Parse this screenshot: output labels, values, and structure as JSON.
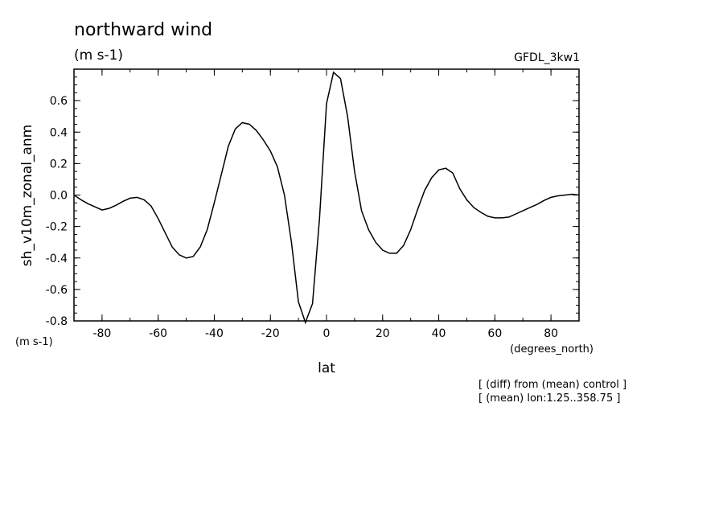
{
  "chart_data": {
    "type": "line",
    "title": "northward wind",
    "subtitle": "(m s-1)",
    "model_label": "GFDL_3kw1",
    "ylabel": "sh_v10m_zonal_anm",
    "yunits": "(m s-1)",
    "xlabel": "lat",
    "xunits": "(degrees_north)",
    "notes": [
      "[ (diff) from (mean) control ]",
      "[ (mean) lon:1.25..358.75 ]"
    ],
    "xlim": [
      -90,
      90
    ],
    "ylim": [
      -0.8,
      0.8
    ],
    "xticks": [
      -80,
      -60,
      -40,
      -20,
      0,
      20,
      40,
      60,
      80
    ],
    "xtick_labels": [
      "-80",
      "-60",
      "-40",
      "-20",
      "0",
      "20",
      "40",
      "60",
      "80"
    ],
    "yticks": [
      -0.8,
      -0.6,
      -0.4,
      -0.2,
      0.0,
      0.2,
      0.4,
      0.6
    ],
    "ytick_labels": [
      "-0.8",
      "-0.6",
      "-0.4",
      "-0.2",
      "0.0",
      "0.2",
      "0.4",
      "0.6"
    ],
    "grid": false,
    "series": [
      {
        "x": [
          -90,
          -87.5,
          -85,
          -82.5,
          -80,
          -77.5,
          -75,
          -72.5,
          -70,
          -67.5,
          -65,
          -62.5,
          -60,
          -57.5,
          -55,
          -52.5,
          -50,
          -47.5,
          -45,
          -42.5,
          -40,
          -37.5,
          -35,
          -32.5,
          -30,
          -27.5,
          -25,
          -22.5,
          -20,
          -17.5,
          -15,
          -12.5,
          -10,
          -7.5,
          -5,
          -2.5,
          0,
          2.5,
          5,
          7.5,
          10,
          12.5,
          15,
          17.5,
          20,
          22.5,
          25,
          27.5,
          30,
          32.5,
          35,
          37.5,
          40,
          42.5,
          45,
          47.5,
          50,
          52.5,
          55,
          57.5,
          60,
          62.5,
          65,
          67.5,
          70,
          72.5,
          75,
          77.5,
          80,
          82.5,
          85,
          87.5,
          90
        ],
        "y": [
          0.0,
          -0.03,
          -0.055,
          -0.075,
          -0.095,
          -0.085,
          -0.065,
          -0.04,
          -0.02,
          -0.015,
          -0.03,
          -0.07,
          -0.15,
          -0.24,
          -0.33,
          -0.38,
          -0.4,
          -0.39,
          -0.33,
          -0.22,
          -0.05,
          0.13,
          0.31,
          0.42,
          0.46,
          0.45,
          0.41,
          0.35,
          0.28,
          0.18,
          0.0,
          -0.3,
          -0.68,
          -0.81,
          -0.69,
          -0.15,
          0.58,
          0.78,
          0.74,
          0.5,
          0.15,
          -0.1,
          -0.22,
          -0.3,
          -0.35,
          -0.37,
          -0.37,
          -0.32,
          -0.22,
          -0.09,
          0.03,
          0.11,
          0.16,
          0.17,
          0.14,
          0.04,
          -0.03,
          -0.08,
          -0.11,
          -0.135,
          -0.145,
          -0.145,
          -0.14,
          -0.12,
          -0.1,
          -0.08,
          -0.06,
          -0.035,
          -0.015,
          -0.005,
          0.0,
          0.005,
          0.0
        ]
      }
    ]
  }
}
